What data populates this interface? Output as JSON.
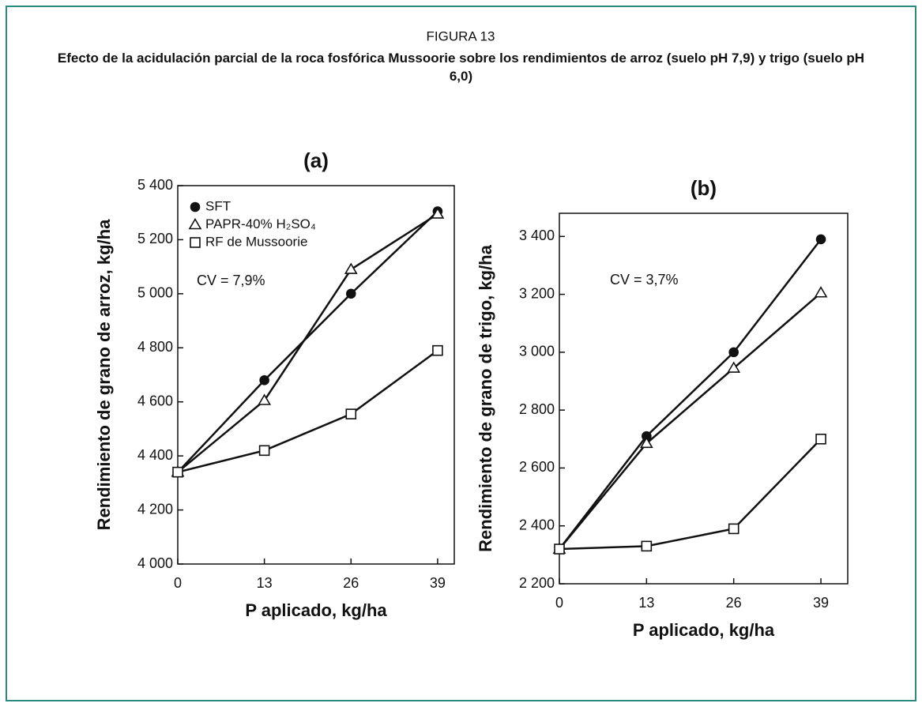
{
  "figure_label": "FIGURA 13",
  "title": "Efecto de la acidulación parcial de la roca fosfórica Mussoorie sobre los rendimientos de arroz (suelo pH 7,9) y trigo (suelo pH 6,0)",
  "chart_data": [
    {
      "type": "line",
      "title": "(a)",
      "x_label": "P aplicado, kg/ha",
      "y_label": "Rendimiento de grano de arroz, kg/ha",
      "annotation": "CV = 7,9%",
      "legend": "upper left",
      "x": [
        0,
        13,
        26,
        39
      ],
      "xlim": [
        0,
        41.5
      ],
      "xticks": [
        0,
        13,
        26,
        39
      ],
      "ylim": [
        4000,
        5400
      ],
      "yticks": [
        {
          "value": 4000,
          "label": "4 000"
        },
        {
          "value": 4200,
          "label": "4 200"
        },
        {
          "value": 4400,
          "label": "4 400"
        },
        {
          "value": 4600,
          "label": "4 600"
        },
        {
          "value": 4800,
          "label": "4 800"
        },
        {
          "value": 5000,
          "label": "5 000"
        },
        {
          "value": 5200,
          "label": "5 200"
        },
        {
          "value": 5400,
          "label": "5 400"
        }
      ],
      "series": [
        {
          "name": "SFT",
          "color": "#111111",
          "marker": "circle",
          "values": [
            4340,
            4680,
            5000,
            5305
          ]
        },
        {
          "name": "PAPR-40% H₂SO₄",
          "color": "#111111",
          "marker": "triangle",
          "values": [
            4340,
            4605,
            5090,
            5295
          ]
        },
        {
          "name": "RF de Mussoorie",
          "color": "#111111",
          "marker": "square",
          "values": [
            4340,
            4420,
            4555,
            4790
          ]
        }
      ]
    },
    {
      "type": "line",
      "title": "(b)",
      "x_label": "P aplicado, kg/ha",
      "y_label": "Rendimiento de grano de trigo, kg/ha",
      "annotation": "CV = 3,7%",
      "x": [
        0,
        13,
        26,
        39
      ],
      "xlim": [
        0,
        43
      ],
      "xticks": [
        0,
        13,
        26,
        39
      ],
      "ylim": [
        2200,
        3480
      ],
      "yticks": [
        {
          "value": 2200,
          "label": "2 200"
        },
        {
          "value": 2400,
          "label": "2 400"
        },
        {
          "value": 2600,
          "label": "2 600"
        },
        {
          "value": 2800,
          "label": "2 800"
        },
        {
          "value": 3000,
          "label": "3 000"
        },
        {
          "value": 3200,
          "label": "3 200"
        },
        {
          "value": 3400,
          "label": "3 400"
        }
      ],
      "series": [
        {
          "color": "#111111",
          "marker": "circle",
          "values": [
            2320,
            2710,
            3000,
            3390
          ]
        },
        {
          "color": "#111111",
          "marker": "triangle",
          "values": [
            2320,
            2685,
            2945,
            3205
          ]
        },
        {
          "color": "#111111",
          "marker": "square",
          "values": [
            2320,
            2330,
            2390,
            2700
          ]
        }
      ]
    }
  ]
}
